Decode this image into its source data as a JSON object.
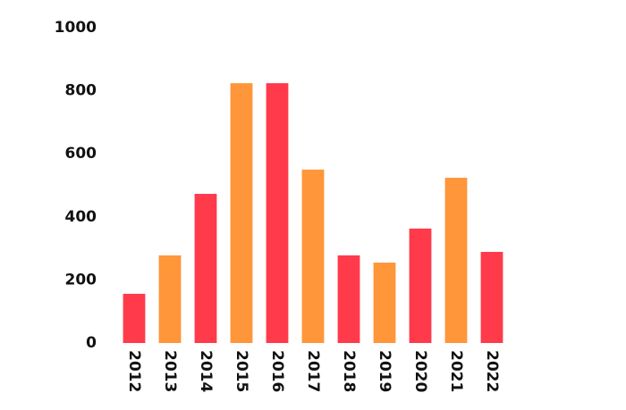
{
  "chart_data": {
    "type": "bar",
    "categories": [
      "2012",
      "2013",
      "2014",
      "2015",
      "2016",
      "2017",
      "2018",
      "2019",
      "2020",
      "2021",
      "2022"
    ],
    "values": [
      156,
      278,
      473,
      824,
      824,
      550,
      278,
      255,
      363,
      524,
      289
    ],
    "colors": [
      "#ff3a4b",
      "#ff9639",
      "#ff3a4b",
      "#ff9639",
      "#ff3a4b",
      "#ff9639",
      "#ff3a4b",
      "#ff9639",
      "#ff3a4b",
      "#ff9639",
      "#ff3a4b"
    ],
    "ylim": [
      0,
      1000
    ],
    "yticks": [
      0,
      200,
      400,
      600,
      800,
      1000
    ],
    "grid": false
  }
}
